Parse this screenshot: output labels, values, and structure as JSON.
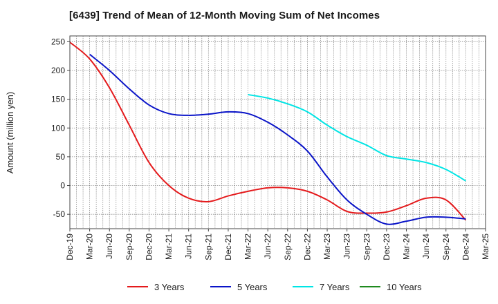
{
  "chart_data": {
    "type": "line",
    "title": "[6439]  Trend of Mean of 12-Month Moving Sum of Net Incomes",
    "xlabel": "",
    "ylabel": "Amount (million yen)",
    "ylim": [
      -75,
      260
    ],
    "yticks": [
      250,
      200,
      150,
      100,
      50,
      0,
      -50
    ],
    "xlim": [
      "Dec-19",
      "Mar-25"
    ],
    "x_tick_labels": [
      "Dec-19",
      "Mar-20",
      "Jun-20",
      "Sep-20",
      "Dec-20",
      "Mar-21",
      "Jun-21",
      "Sep-21",
      "Dec-21",
      "Mar-22",
      "Jun-22",
      "Sep-22",
      "Dec-22",
      "Mar-23",
      "Jun-23",
      "Sep-23",
      "Dec-23",
      "Mar-24",
      "Jun-24",
      "Sep-24",
      "Dec-24",
      "Mar-25"
    ],
    "grid": true,
    "legend_position": "bottom",
    "series": [
      {
        "name": "3 Years",
        "color": "#e41a1c",
        "points": [
          [
            "Dec-19",
            249
          ],
          [
            "Mar-20",
            220
          ],
          [
            "Jun-20",
            170
          ],
          [
            "Sep-20",
            105
          ],
          [
            "Dec-20",
            40
          ],
          [
            "Mar-21",
            0
          ],
          [
            "Jun-21",
            -22
          ],
          [
            "Sep-21",
            -28
          ],
          [
            "Dec-21",
            -18
          ],
          [
            "Mar-22",
            -10
          ],
          [
            "Jun-22",
            -4
          ],
          [
            "Sep-22",
            -4
          ],
          [
            "Dec-22",
            -10
          ],
          [
            "Mar-23",
            -25
          ],
          [
            "Jun-23",
            -45
          ],
          [
            "Sep-23",
            -48
          ],
          [
            "Dec-23",
            -46
          ],
          [
            "Mar-24",
            -35
          ],
          [
            "Jun-24",
            -22
          ],
          [
            "Sep-24",
            -25
          ],
          [
            "Dec-24",
            -60
          ]
        ]
      },
      {
        "name": "5 Years",
        "color": "#0a14c8",
        "points": [
          [
            "Mar-20",
            228
          ],
          [
            "Jun-20",
            200
          ],
          [
            "Sep-20",
            168
          ],
          [
            "Dec-20",
            140
          ],
          [
            "Mar-21",
            125
          ],
          [
            "Jun-21",
            122
          ],
          [
            "Sep-21",
            124
          ],
          [
            "Dec-21",
            128
          ],
          [
            "Mar-22",
            125
          ],
          [
            "Jun-22",
            110
          ],
          [
            "Sep-22",
            88
          ],
          [
            "Dec-22",
            60
          ],
          [
            "Mar-23",
            15
          ],
          [
            "Jun-23",
            -25
          ],
          [
            "Sep-23",
            -50
          ],
          [
            "Dec-23",
            -67
          ],
          [
            "Mar-24",
            -62
          ],
          [
            "Jun-24",
            -55
          ],
          [
            "Sep-24",
            -55
          ],
          [
            "Dec-24",
            -58
          ]
        ]
      },
      {
        "name": "7 Years",
        "color": "#00e5e5",
        "points": [
          [
            "Mar-22",
            158
          ],
          [
            "Jun-22",
            152
          ],
          [
            "Sep-22",
            142
          ],
          [
            "Dec-22",
            128
          ],
          [
            "Mar-23",
            105
          ],
          [
            "Jun-23",
            85
          ],
          [
            "Sep-23",
            70
          ],
          [
            "Dec-23",
            52
          ],
          [
            "Mar-24",
            46
          ],
          [
            "Jun-24",
            40
          ],
          [
            "Sep-24",
            28
          ],
          [
            "Dec-24",
            8
          ]
        ]
      },
      {
        "name": "10 Years",
        "color": "#1f8a1f",
        "points": []
      }
    ]
  }
}
